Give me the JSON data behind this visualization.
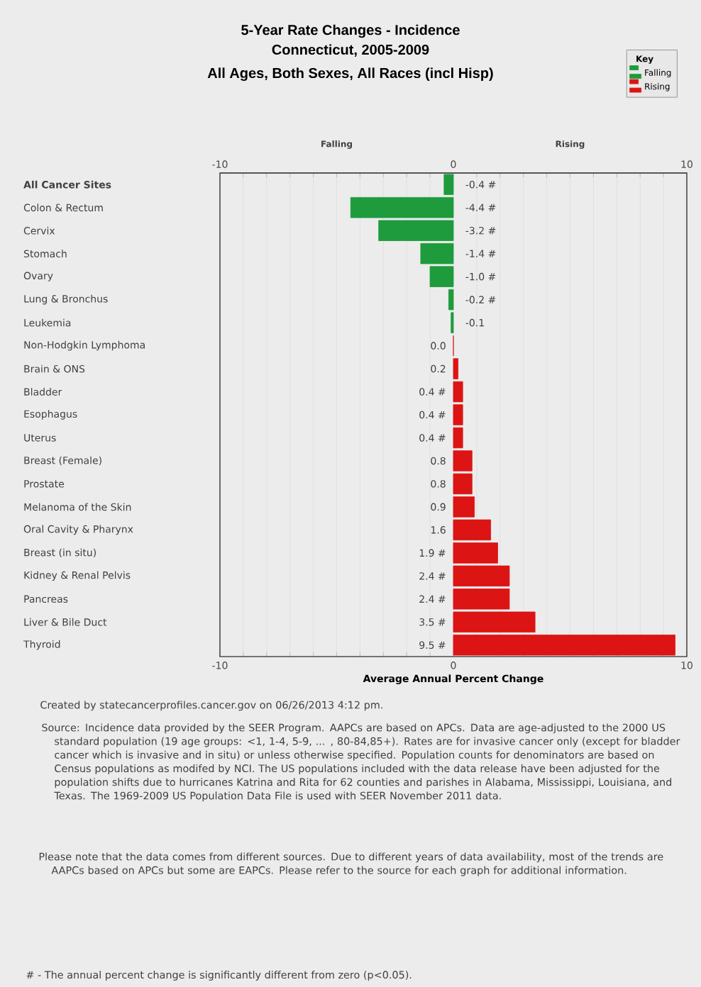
{
  "chart_data": {
    "type": "bar",
    "orientation": "horizontal",
    "title": "5-Year Rate Changes - Incidence",
    "subtitle": "Connecticut, 2005-2009\nAll Ages, Both Sexes, All Races (incl Hisp)",
    "xlabel": "Average Annual Percent Change",
    "legend_title": "Key",
    "categories": [
      "All Cancer Sites",
      "Colon & Rectum",
      "Cervix",
      "Stomach",
      "Ovary",
      "Lung & Bronchus",
      "Leukemia",
      "Non-Hodgkin Lymphoma",
      "Brain & ONS",
      "Bladder",
      "Esophagus",
      "Uterus",
      "Breast (Female)",
      "Prostate",
      "Melanoma of the Skin",
      "Oral Cavity & Pharynx",
      "Breast (in situ)",
      "Kidney & Renal Pelvis",
      "Pancreas",
      "Liver & Bile Duct",
      "Thyroid"
    ],
    "series": [
      {
        "name": "Falling",
        "color": "#1e9b3c",
        "values": [
          -0.4,
          -4.4,
          -3.2,
          -1.4,
          -1.0,
          -0.2,
          -0.1,
          null,
          null,
          null,
          null,
          null,
          null,
          null,
          null,
          null,
          null,
          null,
          null,
          null,
          null
        ],
        "value_labels": [
          "-0.4 #",
          "-4.4 #",
          "-3.2 #",
          "-1.4 #",
          "-1.0 #",
          "-0.2 #",
          "-0.1",
          null,
          null,
          null,
          null,
          null,
          null,
          null,
          null,
          null,
          null,
          null,
          null,
          null,
          null
        ]
      },
      {
        "name": "Rising",
        "color": "#dc1414",
        "values": [
          null,
          null,
          null,
          null,
          null,
          null,
          null,
          0.0,
          0.2,
          0.4,
          0.4,
          0.4,
          0.8,
          0.8,
          0.9,
          1.6,
          1.9,
          2.4,
          2.4,
          3.5,
          9.5
        ],
        "value_labels": [
          null,
          null,
          null,
          null,
          null,
          null,
          null,
          "0.0",
          "0.2",
          "0.4 #",
          "0.4 #",
          "0.4 #",
          "0.8",
          "0.8",
          "0.9",
          "1.6",
          "1.9 #",
          "2.4 #",
          "2.4 #",
          "3.5 #",
          "9.5 #"
        ]
      }
    ],
    "xlim": [
      -10,
      10
    ],
    "xticks": [
      -10,
      {
        "value": -9,
        "label": null
      },
      {
        "value": -8,
        "label": null
      },
      {
        "value": -7,
        "label": null
      },
      {
        "value": -6,
        "label": null
      },
      {
        "value": -5,
        "label": null
      },
      {
        "value": -4,
        "label": null
      },
      {
        "value": -3,
        "label": null
      },
      {
        "value": -2,
        "label": null
      },
      {
        "value": -1,
        "label": null
      },
      0,
      {
        "value": 1,
        "label": null
      },
      {
        "value": 2,
        "label": null
      },
      {
        "value": 3,
        "label": null
      },
      {
        "value": 4,
        "label": null
      },
      {
        "value": 5,
        "label": null
      },
      {
        "value": 6,
        "label": null
      },
      {
        "value": 7,
        "label": null
      },
      {
        "value": 8,
        "label": null
      },
      {
        "value": 9,
        "label": null
      },
      10
    ],
    "x2lim": [
      -10,
      10
    ],
    "x2ticks": [
      -10,
      {
        "value": -9,
        "label": null
      },
      {
        "value": -8,
        "label": null
      },
      {
        "value": -7,
        "label": null
      },
      {
        "value": -6,
        "label": null
      },
      {
        "value": -5,
        "label": null
      },
      {
        "value": -4,
        "label": null
      },
      {
        "value": -3,
        "label": null
      },
      {
        "value": -2,
        "label": null
      },
      {
        "value": -1,
        "label": null
      },
      0,
      {
        "value": 1,
        "label": null
      },
      {
        "value": 2,
        "label": null
      },
      {
        "value": 3,
        "label": null
      },
      {
        "value": 4,
        "label": null
      },
      {
        "value": 5,
        "label": null
      },
      {
        "value": 6,
        "label": null
      },
      {
        "value": 7,
        "label": null
      },
      {
        "value": 8,
        "label": null
      },
      {
        "value": 9,
        "label": null
      },
      10
    ],
    "grid": "x",
    "legend": "top right",
    "annotations": [
      "Falling",
      "Rising",
      "Created by statecancerprofiles.cancer.gov on 06/26/2013 4:12 pm.",
      "Source: Incidence data provided by the SEER Program. AAPCs are based on APCs. Data are age-adjusted to the 2000 US standard population (19 age groups: <1, 1-4, 5-9, ... , 80-84,85+). Rates are for invasive cancer only (except for bladder cancer which is invasive and in situ) or unless otherwise specified. Population counts for denominators are based on Census populations as modifed by NCI. The US populations included with the data release have been adjusted for the population shifts due to hurricanes Katrina and Rita for 62 counties and parishes in Alabama, Mississippi, Louisiana, and Texas. The 1969-2009 US Population Data File is used with SEER November 2011 data.",
      "Please note that the data comes from different sources. Due to different years of data availability, most of the trends are AAPCs based on APCs but some are EAPCs. Please refer to the source for each graph for additional information.",
      "# - The annual percent change is significantly different from zero (p<0.05)."
    ]
  }
}
